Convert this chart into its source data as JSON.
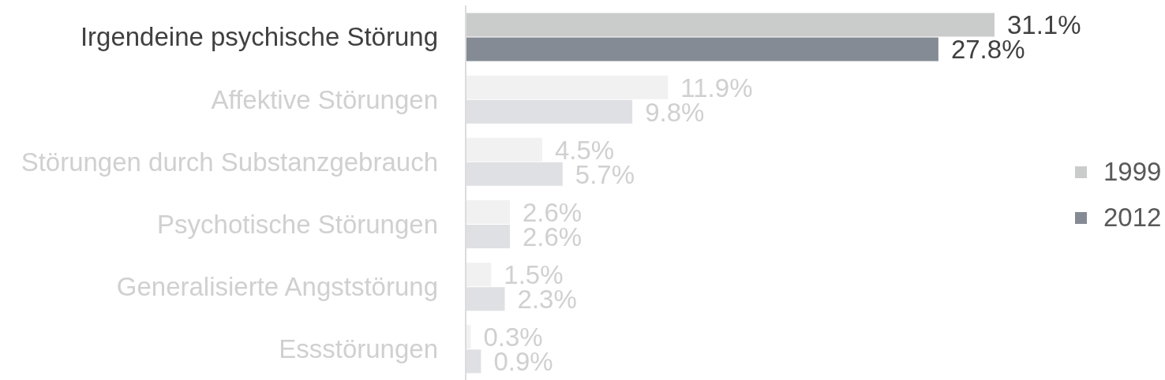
{
  "chart_data": {
    "type": "bar",
    "orientation": "horizontal",
    "categories": [
      "Irgendeine psychische Störung",
      "Affektive Störungen",
      "Störungen durch Substanzgebrauch",
      "Psychotische Störungen",
      "Generalisierte Angststörung",
      "Essstörungen"
    ],
    "series": [
      {
        "name": "1999",
        "color": "#cacccb",
        "colors": [
          "#cacccb",
          "#f1f1f1",
          "#f1f1f1",
          "#f1f1f1",
          "#f1f1f1",
          "#f1f1f1"
        ],
        "values": [
          31.1,
          11.9,
          4.5,
          2.6,
          1.5,
          0.3
        ],
        "value_labels": [
          "31.1%",
          "11.9%",
          "4.5%",
          "2.6%",
          "1.5%",
          "0.3%"
        ]
      },
      {
        "name": "2012",
        "color": "#858b95",
        "colors": [
          "#858b95",
          "#dfe0e3",
          "#dfe0e3",
          "#dfe0e3",
          "#dfe0e3",
          "#dfe0e3"
        ],
        "values": [
          27.8,
          9.8,
          5.7,
          2.6,
          2.3,
          0.9
        ],
        "value_labels": [
          "27.8%",
          "9.8%",
          "5.7%",
          "2.6%",
          "2.3%",
          "0.9%"
        ]
      }
    ],
    "tick_labels": "y",
    "legend": "right"
  }
}
